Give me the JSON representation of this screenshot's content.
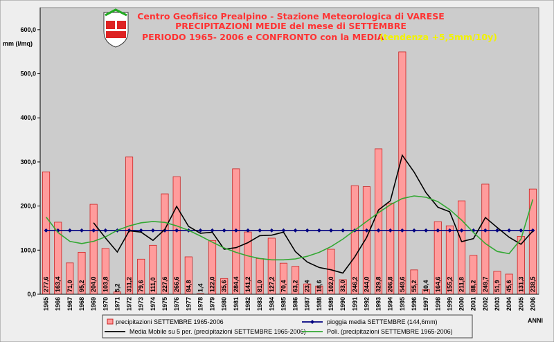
{
  "chart_data": {
    "type": "bar",
    "title": "Centro Geofisico Prealpino - Stazione Meteorologica di VARESE",
    "subtitle": [
      "PRECIPITAZIONI MEDIE del mese di SETTEMBRE",
      "PERIODO 1965- 2006 e CONFRONTO con la MEDIA"
    ],
    "annotation": "(tendenza +5,5mm/10y)",
    "y_label": "mm (l/mq)",
    "x_label": "ANNI",
    "categories": [
      "1965",
      "1966",
      "1967",
      "1968",
      "1969",
      "1970",
      "1971",
      "1972",
      "1973",
      "1974",
      "1975",
      "1976",
      "1977",
      "1978",
      "1979",
      "1980",
      "1981",
      "1982",
      "1983",
      "1984",
      "1985",
      "1986",
      "1987",
      "1988",
      "1989",
      "1990",
      "1991",
      "1992",
      "1993",
      "1994",
      "1995",
      "1996",
      "1997",
      "1998",
      "1999",
      "2000",
      "2001",
      "2002",
      "2003",
      "2004",
      "2005",
      "2006"
    ],
    "ylim": [
      0,
      650
    ],
    "yticks": [
      {
        "value": 0,
        "label": "0,0"
      },
      {
        "value": 100,
        "label": "100,0"
      },
      {
        "value": 200,
        "label": "200,0"
      },
      {
        "value": 300,
        "label": "300,0"
      },
      {
        "value": 400,
        "label": "400,0"
      },
      {
        "value": 500,
        "label": "500,0"
      },
      {
        "value": 600,
        "label": "600,0"
      }
    ],
    "grid": false,
    "series": [
      {
        "name": "precipitazioni SETTEMBRE 1965-2006",
        "type": "bar",
        "color": "#ff9c9c",
        "values": [
          277.6,
          163.4,
          71.0,
          95.2,
          204.0,
          103.8,
          5.2,
          311.2,
          79.6,
          111.0,
          227.6,
          266.6,
          84.8,
          1.4,
          122.0,
          35.6,
          284.4,
          141.2,
          81.0,
          127.2,
          70.4,
          63.2,
          23.4,
          18.6,
          102.0,
          33.0,
          246.2,
          244.0,
          329.8,
          206.8,
          549.6,
          55.2,
          10.4,
          164.6,
          155.2,
          211.8,
          88.2,
          249.7,
          51.9,
          45.6,
          131.3,
          238.5
        ],
        "value_labels": [
          "277,6",
          "163,4",
          "71,0",
          "95,2",
          "204,0",
          "103,8",
          "5,2",
          "311,2",
          "79,6",
          "111,0",
          "227,6",
          "266,6",
          "84,8",
          "1,4",
          "122,0",
          "35,6",
          "284,4",
          "141,2",
          "81,0",
          "127,2",
          "70,4",
          "63,2",
          "23,4",
          "18,6",
          "102,0",
          "33,0",
          "246,2",
          "244,0",
          "329,8",
          "206,8",
          "549,6",
          "55,2",
          "10,4",
          "164,6",
          "155,2",
          "211,8",
          "88,2",
          "249,7",
          "51,9",
          "45,6",
          "131,3",
          "238,5"
        ]
      },
      {
        "name": "pioggia media SETTEMBRE (144,6mm)",
        "type": "line",
        "marker": "diamond",
        "color": "#000080",
        "values": [
          144.6,
          144.6,
          144.6,
          144.6,
          144.6,
          144.6,
          144.6,
          144.6,
          144.6,
          144.6,
          144.6,
          144.6,
          144.6,
          144.6,
          144.6,
          144.6,
          144.6,
          144.6,
          144.6,
          144.6,
          144.6,
          144.6,
          144.6,
          144.6,
          144.6,
          144.6,
          144.6,
          144.6,
          144.6,
          144.6,
          144.6,
          144.6,
          144.6,
          144.6,
          144.6,
          144.6,
          144.6,
          144.6,
          144.6,
          144.6,
          144.6,
          144.6
        ]
      },
      {
        "name": "Media Mobile su 5 per. (precipitazioni SETTEMBRE 1965-2006)",
        "type": "line",
        "color": "#000000",
        "values": [
          null,
          null,
          null,
          null,
          162.2,
          127.5,
          95.8,
          143.9,
          140.8,
          122.2,
          146.9,
          199.2,
          153.9,
          138.3,
          140.5,
          102.1,
          105.6,
          116.9,
          132.8,
          133.9,
          140.8,
          96.6,
          73.0,
          60.6,
          55.5,
          48.0,
          84.6,
          128.8,
          191.0,
          212.0,
          315.3,
          277.1,
          230.4,
          197.3,
          187.0,
          119.4,
          126.0,
          173.9,
          151.4,
          129.4,
          113.3,
          143.4
        ]
      },
      {
        "name": "Poli. (precipitazioni SETTEMBRE 1965-2006)",
        "type": "line",
        "color": "#33a833",
        "values": [
          175,
          140,
          120,
          115,
          120,
          130,
          145,
          155,
          162,
          165,
          163,
          155,
          145,
          132,
          118,
          105,
          95,
          87,
          81,
          78,
          78,
          80,
          86,
          95,
          108,
          125,
          145,
          165,
          185,
          203,
          217,
          223,
          220,
          210,
          192,
          168,
          140,
          115,
          97,
          92,
          125,
          215
        ]
      }
    ]
  }
}
